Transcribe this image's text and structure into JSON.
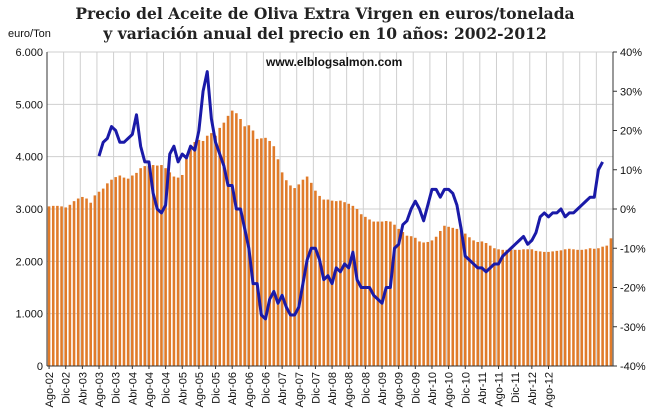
{
  "chart_data": {
    "type": "bar",
    "title": "Precio del Aceite de Oliva Extra Virgen en euros/tonelada",
    "subtitle": "y variación anual del precio en 10 años: 2002-2012",
    "ylabel": "euro/Ton",
    "annotation": "www.elblogsalmon.com",
    "ylim": [
      0,
      6000
    ],
    "y2lim": [
      -40,
      40
    ],
    "y_ticks": [
      "0",
      "1.000",
      "2.000",
      "3.000",
      "4.000",
      "5.000",
      "6.000"
    ],
    "y2_ticks": [
      "-40%",
      "-30%",
      "-20%",
      "-10%",
      "0%",
      "10%",
      "20%",
      "30%",
      "40%"
    ],
    "x_tick_labels": [
      "Ago-02",
      "Dic-02",
      "Abr-03",
      "Ago-03",
      "Dic-03",
      "Abr-04",
      "Ago-04",
      "Dic-04",
      "Abr-05",
      "Ago-05",
      "Dic-05",
      "Abr-06",
      "Ago-06",
      "Dic-06",
      "Abr-07",
      "Ago-07",
      "Dic-07",
      "Abr-08",
      "Ago-08",
      "Dic-08",
      "Abr-09",
      "Ago-09",
      "Dic-09",
      "Abr-10",
      "Ago-10",
      "Dic-10",
      "Abr-11",
      "Ago-11",
      "Dic-11",
      "Abr-12",
      "Ago-12"
    ],
    "grid": true,
    "colors": {
      "bars": "#e07b2a",
      "line": "#1a1aa8",
      "grid": "#cfcfcf"
    },
    "series": [
      {
        "type": "bar",
        "axis": "left",
        "values": [
          3050,
          3060,
          3060,
          3050,
          3030,
          3080,
          3150,
          3200,
          3230,
          3200,
          3120,
          3260,
          3330,
          3390,
          3490,
          3560,
          3610,
          3640,
          3600,
          3580,
          3640,
          3690,
          3780,
          3820,
          3820,
          3840,
          3830,
          3840,
          3780,
          3700,
          3620,
          3600,
          3650,
          4000,
          4150,
          4280,
          4320,
          4300,
          4400,
          4450,
          4400,
          4550,
          4650,
          4780,
          4880,
          4830,
          4720,
          4580,
          4600,
          4500,
          4340,
          4350,
          4360,
          4300,
          4200,
          3950,
          3700,
          3550,
          3450,
          3400,
          3470,
          3560,
          3620,
          3500,
          3350,
          3250,
          3180,
          3180,
          3160,
          3150,
          3160,
          3130,
          3100,
          3060,
          3000,
          2900,
          2850,
          2800,
          2760,
          2760,
          2760,
          2770,
          2760,
          2700,
          2620,
          2560,
          2490,
          2480,
          2450,
          2380,
          2360,
          2370,
          2400,
          2470,
          2580,
          2680,
          2660,
          2640,
          2620,
          2580,
          2530,
          2460,
          2400,
          2370,
          2380,
          2350,
          2300,
          2250,
          2230,
          2220,
          2220,
          2220,
          2220,
          2220,
          2230,
          2230,
          2230,
          2200,
          2190,
          2180,
          2180,
          2190,
          2200,
          2210,
          2230,
          2240,
          2230,
          2220,
          2220,
          2230,
          2250,
          2240,
          2250,
          2280,
          2300,
          2440
        ]
      },
      {
        "type": "line",
        "axis": "right",
        "start_index": 12,
        "values": [
          13.5,
          17,
          18,
          21,
          20,
          17,
          17,
          18,
          19,
          24,
          16,
          12,
          12,
          4,
          0,
          -1,
          1,
          14,
          16,
          12,
          14,
          13,
          16,
          15,
          20,
          30,
          35,
          23,
          17,
          14,
          11,
          6,
          6,
          0,
          0,
          -5,
          -10,
          -19,
          -19,
          -27,
          -28,
          -23,
          -21,
          -24,
          -22,
          -25,
          -27,
          -27,
          -25,
          -19,
          -13,
          -10,
          -10,
          -13,
          -18,
          -17,
          -19,
          -15,
          -16,
          -14,
          -15,
          -11,
          -18,
          -20,
          -20,
          -20,
          -22,
          -23,
          -24,
          -20,
          -20,
          -10,
          -9,
          -4,
          -3,
          0,
          2,
          0,
          -3,
          1,
          5,
          5,
          3,
          5,
          5,
          4,
          1,
          -5,
          -12,
          -13,
          -14,
          -15,
          -15,
          -16,
          -15,
          -14,
          -14,
          -12,
          -11,
          -10,
          -9,
          -8,
          -7,
          -9,
          -8,
          -6,
          -2,
          -1,
          -2,
          -1,
          -1,
          0,
          -2,
          -1,
          -1,
          0,
          1,
          2,
          3,
          3,
          10,
          12
        ]
      }
    ]
  }
}
